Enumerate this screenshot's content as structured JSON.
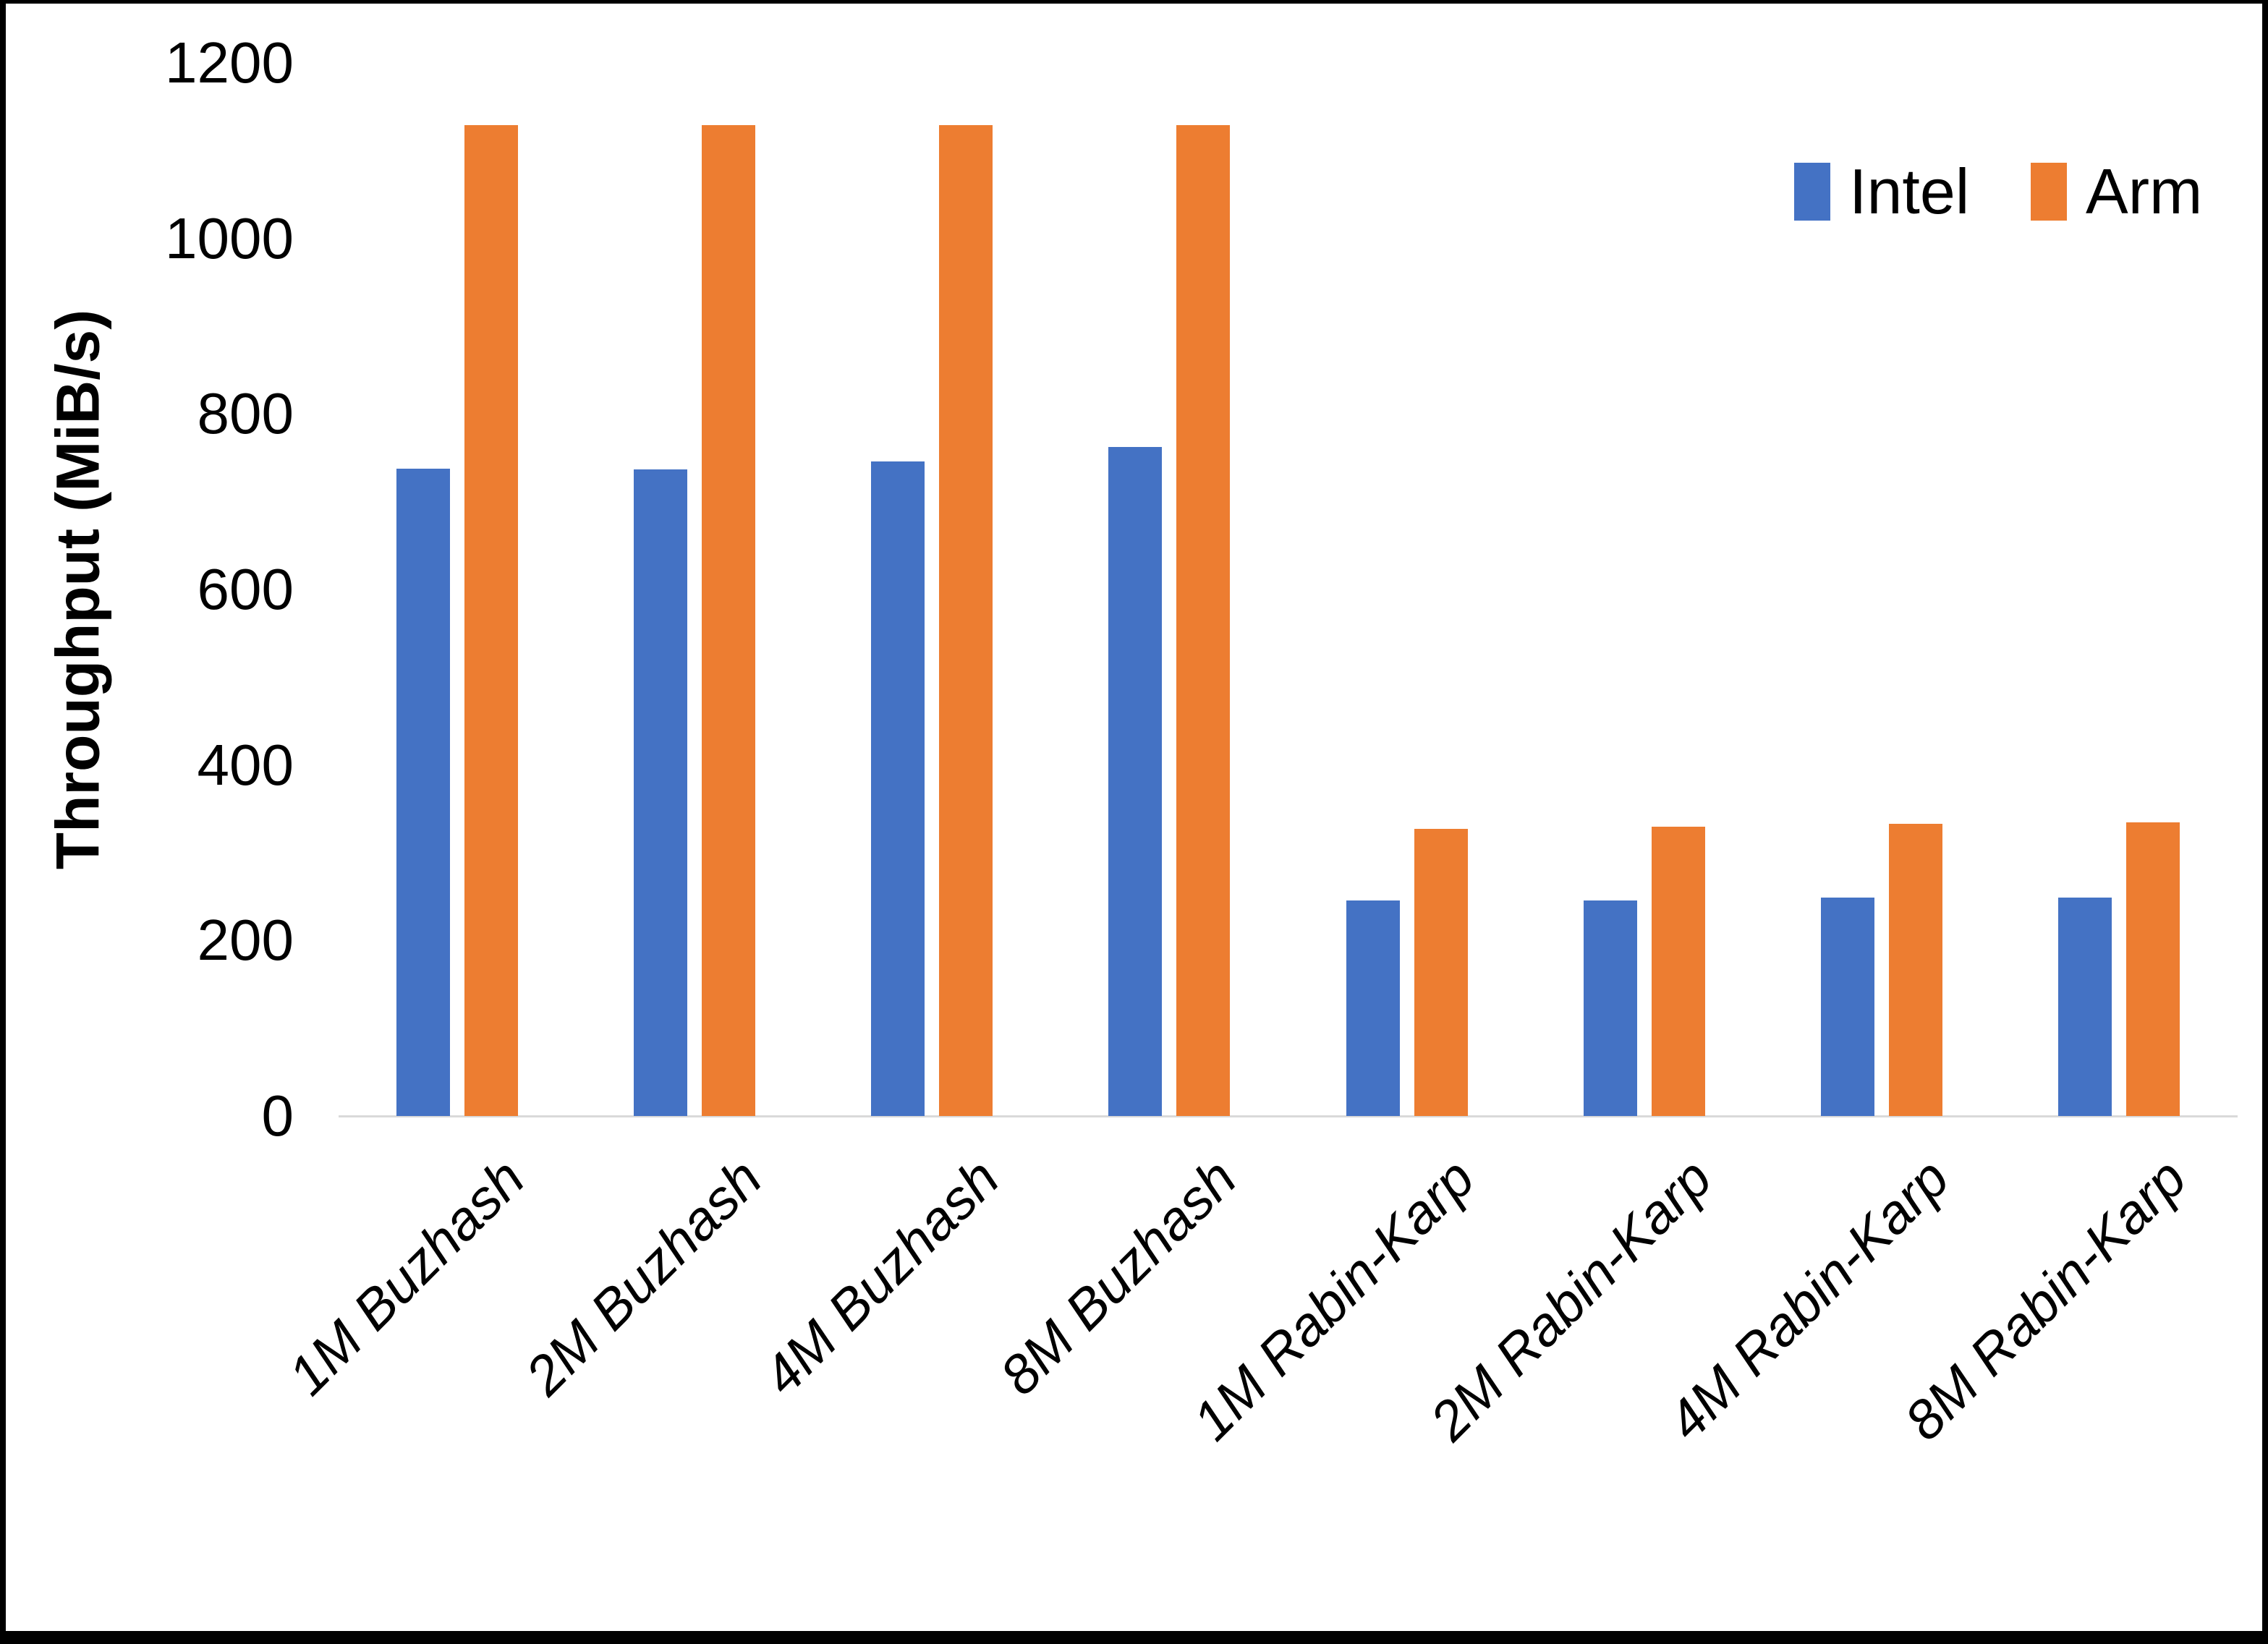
{
  "chart": {
    "legend": [
      {
        "label": "Intel",
        "color": "#4472C4"
      },
      {
        "label": "Arm",
        "color": "#ED7D31"
      }
    ],
    "axis_line_color": "#D9D9D9",
    "frame_color": "#000000"
  },
  "chart_data": {
    "type": "bar",
    "title": "",
    "xlabel": "",
    "ylabel": "Throughput (MiB/s)",
    "categories": [
      "1M Buzhash",
      "2M Buzhash",
      "4M Buzhash",
      "8M Buzhash",
      "1M Rabin-Karp",
      "2M Rabin-Karp",
      "4M Rabin-Karp",
      "8M Rabin-Karp"
    ],
    "series": [
      {
        "name": "Intel",
        "color": "#4472C4",
        "values": [
          738,
          737,
          746,
          762,
          246,
          246,
          249,
          249
        ]
      },
      {
        "name": "Arm",
        "color": "#ED7D31",
        "values": [
          1129,
          1129,
          1129,
          1129,
          327,
          330,
          333,
          335
        ]
      }
    ],
    "ylim": [
      0,
      1200
    ],
    "yticks": [
      0,
      200,
      400,
      600,
      800,
      1000,
      1200
    ],
    "grid": false,
    "legend_position": "top-right"
  }
}
